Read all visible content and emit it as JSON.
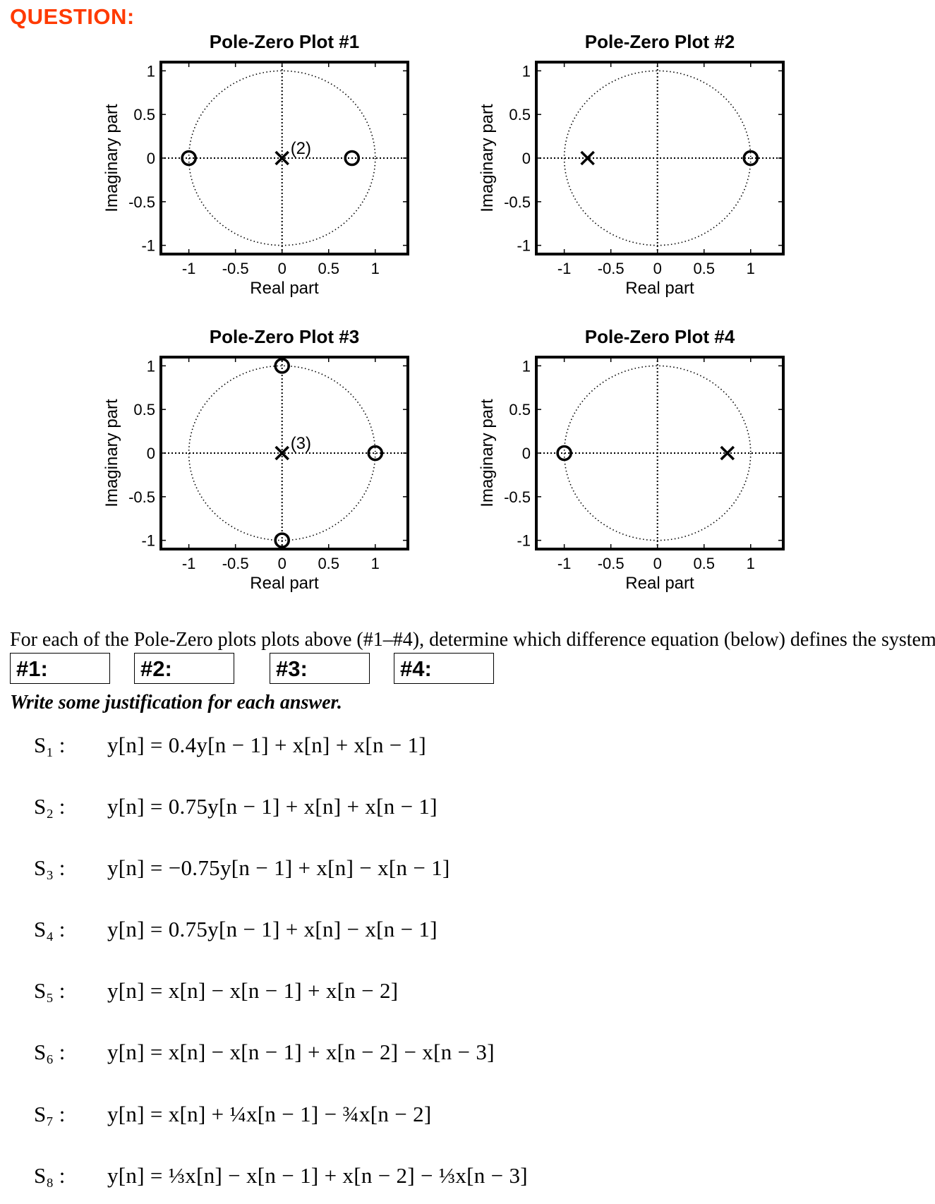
{
  "header": {
    "question_label": "QUESTION:"
  },
  "chart_data": [
    {
      "type": "scatter",
      "title": "Pole-Zero Plot #1",
      "xlabel": "Real part",
      "ylabel": "Imaginary part",
      "xlim": [
        -1.3,
        1.35
      ],
      "ylim": [
        -1.1,
        1.1
      ],
      "xticks": [
        "-1",
        "-0.5",
        "0",
        "0.5",
        "1"
      ],
      "yticks": [
        "1",
        "0.5",
        "0",
        "-0.5",
        "-1"
      ],
      "unit_circle": true,
      "poles": [
        {
          "re": 0,
          "im": 0,
          "multiplicity": 2,
          "label": "(2)"
        }
      ],
      "zeros": [
        {
          "re": -1,
          "im": 0
        },
        {
          "re": 0.75,
          "im": 0
        }
      ]
    },
    {
      "type": "scatter",
      "title": "Pole-Zero Plot #2",
      "xlabel": "Real part",
      "ylabel": "Imaginary part",
      "xlim": [
        -1.3,
        1.35
      ],
      "ylim": [
        -1.1,
        1.1
      ],
      "xticks": [
        "-1",
        "-0.5",
        "0",
        "0.5",
        "1"
      ],
      "yticks": [
        "1",
        "0.5",
        "0",
        "-0.5",
        "-1"
      ],
      "unit_circle": true,
      "poles": [
        {
          "re": -0.75,
          "im": 0
        }
      ],
      "zeros": [
        {
          "re": 1,
          "im": 0
        }
      ]
    },
    {
      "type": "scatter",
      "title": "Pole-Zero Plot #3",
      "xlabel": "Real part",
      "ylabel": "Imaginary part",
      "xlim": [
        -1.3,
        1.35
      ],
      "ylim": [
        -1.1,
        1.1
      ],
      "xticks": [
        "-1",
        "-0.5",
        "0",
        "0.5",
        "1"
      ],
      "yticks": [
        "1",
        "0.5",
        "0",
        "-0.5",
        "-1"
      ],
      "unit_circle": true,
      "poles": [
        {
          "re": 0,
          "im": 0,
          "multiplicity": 3,
          "label": "(3)"
        }
      ],
      "zeros": [
        {
          "re": 0,
          "im": 1
        },
        {
          "re": 1,
          "im": 0
        },
        {
          "re": 0,
          "im": -1
        }
      ]
    },
    {
      "type": "scatter",
      "title": "Pole-Zero Plot #4",
      "xlabel": "Real part",
      "ylabel": "Imaginary part",
      "xlim": [
        -1.3,
        1.35
      ],
      "ylim": [
        -1.1,
        1.1
      ],
      "xticks": [
        "-1",
        "-0.5",
        "0",
        "0.5",
        "1"
      ],
      "yticks": [
        "1",
        "0.5",
        "0",
        "-0.5",
        "-1"
      ],
      "unit_circle": true,
      "poles": [
        {
          "re": 0.75,
          "im": 0
        }
      ],
      "zeros": [
        {
          "re": -1,
          "im": 0
        }
      ]
    }
  ],
  "instruction": "For each of the Pole-Zero plots plots above (#1–#4), determine which difference equation (below) defines the system.",
  "answers": [
    {
      "label": "#1:"
    },
    {
      "label": "#2:"
    },
    {
      "label": "#3:"
    },
    {
      "label": "#4:"
    }
  ],
  "justification_prompt": "Write some justification for each answer.",
  "equations": [
    {
      "label": "S₁ :",
      "eq": "y[n] = 0.4y[n − 1] + x[n] + x[n − 1]"
    },
    {
      "label": "S₂ :",
      "eq": "y[n] = 0.75y[n − 1] + x[n] + x[n − 1]"
    },
    {
      "label": "S₃ :",
      "eq": "y[n] = −0.75y[n − 1] + x[n] − x[n − 1]"
    },
    {
      "label": "S₄ :",
      "eq": "y[n] = 0.75y[n − 1] + x[n] − x[n − 1]"
    },
    {
      "label": "S₅ :",
      "eq": "y[n] = x[n] − x[n − 1] + x[n − 2]"
    },
    {
      "label": "S₆ :",
      "eq": "y[n] = x[n] − x[n − 1] + x[n − 2] − x[n − 3]"
    },
    {
      "label": "S₇ :",
      "eq": "y[n] = x[n] + ¼x[n − 1] − ¾x[n − 2]"
    },
    {
      "label": "S₈ :",
      "eq": "y[n] = ⅓x[n] − x[n − 1] + x[n − 2] − ⅓x[n − 3]"
    }
  ]
}
